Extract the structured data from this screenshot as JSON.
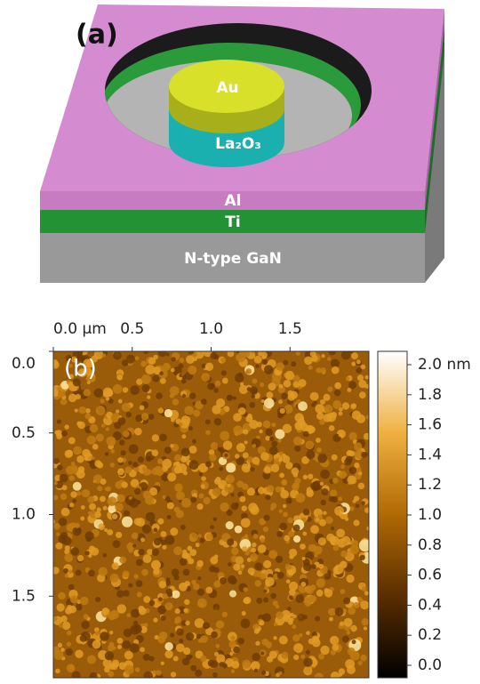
{
  "panel_a": {
    "label": "(a)",
    "layers": {
      "top": "Au",
      "oxide": "La₂O₃",
      "al": "Al",
      "ti": "Ti",
      "substrate": "N-type GaN"
    }
  },
  "panel_b": {
    "label": "(b)",
    "xlim": [
      0,
      2
    ],
    "ylim": [
      0,
      2
    ],
    "xticks": [
      {
        "value": 0,
        "label": "0.0 µm"
      },
      0.5,
      {
        "value": 1,
        "label": "1.0"
      },
      1.5
    ],
    "yticks": [
      {
        "value": 0,
        "label": "0.0"
      },
      0.5,
      {
        "value": 1,
        "label": "1.0"
      },
      1.5
    ],
    "colorbar": {
      "lim": [
        0,
        2
      ],
      "ticks": [
        {
          "value": 0,
          "label": "0.0"
        },
        0.2,
        0.4,
        0.6,
        0.8,
        {
          "value": 1,
          "label": "1.0"
        },
        1.2,
        1.4,
        1.6,
        1.8,
        {
          "value": 2,
          "label": "2.0 nm"
        }
      ]
    }
  }
}
